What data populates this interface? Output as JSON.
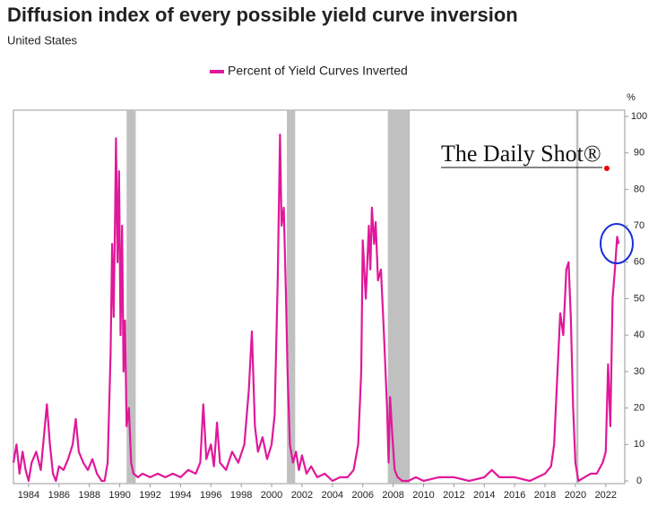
{
  "chart_data": {
    "type": "line",
    "title": "Diffusion index of every possible yield curve inversion",
    "subtitle": "United States",
    "ylabel": "%",
    "watermark": "The Daily Shot®",
    "xlim": [
      1983,
      2023.25
    ],
    "ylim": [
      0,
      100
    ],
    "xticks": [
      1984,
      1986,
      1988,
      1990,
      1992,
      1994,
      1996,
      1998,
      2000,
      2002,
      2004,
      2006,
      2008,
      2010,
      2012,
      2014,
      2016,
      2018,
      2020,
      2022
    ],
    "yticks": [
      0,
      10,
      20,
      30,
      40,
      50,
      60,
      70,
      80,
      90,
      100
    ],
    "grid": false,
    "legend": "top",
    "shaded_color": "#c0c0c0",
    "shaded_periods": [
      [
        1990.45,
        1991.05
      ],
      [
        2001.0,
        2001.55
      ],
      [
        2007.65,
        2009.1
      ],
      [
        2020.05,
        2020.2
      ]
    ],
    "x": [
      1983,
      1983.2,
      1983.4,
      1983.6,
      1983.8,
      1984.0,
      1984.2,
      1984.5,
      1984.8,
      1985.0,
      1985.2,
      1985.4,
      1985.6,
      1985.8,
      1986.0,
      1986.3,
      1986.6,
      1986.9,
      1987.1,
      1987.3,
      1987.6,
      1987.9,
      1988.2,
      1988.5,
      1988.8,
      1989.0,
      1989.2,
      1989.4,
      1989.5,
      1989.6,
      1989.7,
      1989.75,
      1989.85,
      1989.95,
      1990.05,
      1990.15,
      1990.25,
      1990.35,
      1990.45,
      1990.6,
      1990.75,
      1990.9,
      1991.2,
      1991.5,
      1992,
      1992.5,
      1993,
      1993.5,
      1994,
      1994.5,
      1995.0,
      1995.3,
      1995.5,
      1995.7,
      1996,
      1996.2,
      1996.4,
      1996.6,
      1997,
      1997.4,
      1997.8,
      1998.2,
      1998.5,
      1998.7,
      1998.9,
      1999.1,
      1999.4,
      1999.7,
      2000.0,
      2000.2,
      2000.4,
      2000.55,
      2000.65,
      2000.8,
      2000.95,
      2001.05,
      2001.2,
      2001.4,
      2001.6,
      2001.8,
      2002.0,
      2002.3,
      2002.6,
      2003,
      2003.5,
      2004,
      2004.5,
      2005,
      2005.4,
      2005.7,
      2005.9,
      2006.0,
      2006.2,
      2006.4,
      2006.5,
      2006.6,
      2006.75,
      2006.85,
      2007.0,
      2007.2,
      2007.4,
      2007.6,
      2007.7,
      2007.8,
      2007.95,
      2008.1,
      2008.3,
      2008.6,
      2009,
      2009.5,
      2010,
      2011,
      2012,
      2013,
      2014,
      2014.5,
      2015,
      2016,
      2017,
      2018,
      2018.4,
      2018.6,
      2018.8,
      2019.0,
      2019.2,
      2019.4,
      2019.55,
      2019.7,
      2019.85,
      2020.0,
      2020.2,
      2020.6,
      2021,
      2021.4,
      2021.8,
      2022.0,
      2022.15,
      2022.3,
      2022.45,
      2022.6,
      2022.75,
      2022.85
    ],
    "series": [
      {
        "name": "Percent of Yield Curves Inverted",
        "color": "#e0189a",
        "values": [
          5,
          10,
          2,
          8,
          3,
          0,
          5,
          8,
          3,
          12,
          21,
          10,
          2,
          0,
          4,
          3,
          6,
          10,
          17,
          8,
          5,
          3,
          6,
          2,
          0,
          0,
          5,
          35,
          65,
          45,
          75,
          94,
          60,
          85,
          40,
          70,
          30,
          44,
          15,
          20,
          5,
          2,
          1,
          2,
          1,
          2,
          1,
          2,
          1,
          3,
          2,
          5,
          21,
          6,
          10,
          4,
          16,
          5,
          3,
          8,
          5,
          10,
          25,
          41,
          15,
          8,
          12,
          6,
          10,
          18,
          55,
          95,
          70,
          75,
          50,
          30,
          10,
          5,
          8,
          3,
          7,
          2,
          4,
          1,
          2,
          0,
          1,
          1,
          3,
          10,
          30,
          66,
          50,
          70,
          58,
          75,
          65,
          71,
          55,
          58,
          40,
          20,
          5,
          23,
          12,
          3,
          1,
          0,
          0,
          1,
          0,
          1,
          1,
          0,
          1,
          3,
          1,
          1,
          0,
          2,
          4,
          10,
          28,
          46,
          40,
          58,
          60,
          45,
          20,
          5,
          0,
          1,
          2,
          2,
          5,
          8,
          32,
          15,
          50,
          58,
          67,
          65
        ]
      }
    ]
  }
}
